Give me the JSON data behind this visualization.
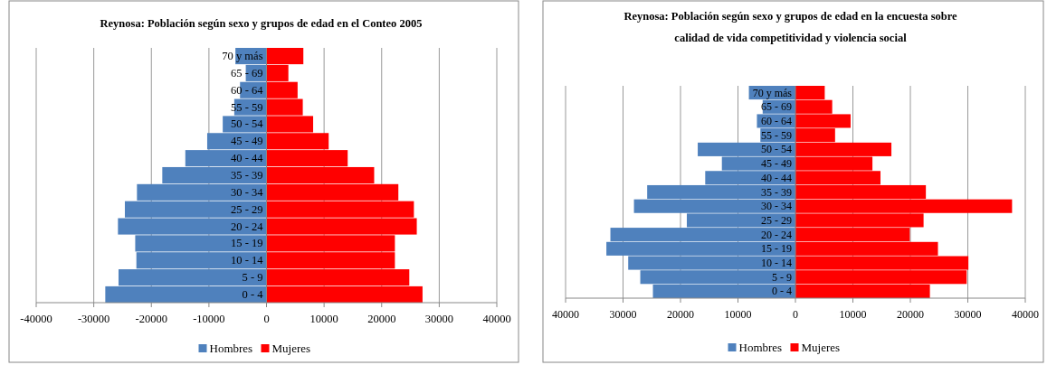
{
  "chart_data": [
    {
      "type": "bar",
      "orientation": "horizontal",
      "stacked": true,
      "title": "Reynosa: Población según sexo y grupos de edad en el Conteo 2005",
      "categories": [
        "70  y más",
        "65 - 69",
        "60 - 64",
        "55 - 59",
        "50 - 54",
        "45 - 49",
        "40 - 44",
        "35 - 39",
        "30 - 34",
        "25 - 29",
        "20 - 24",
        "15 - 19",
        "10 - 14",
        "5 -  9",
        "0 -   4"
      ],
      "series": [
        {
          "name": "Hombres",
          "color": "#4f81bd",
          "values": [
            -5400,
            -3600,
            -4600,
            -5600,
            -7600,
            -10300,
            -14100,
            -18100,
            -22500,
            -24600,
            -25800,
            -22800,
            -22600,
            -25700,
            -28000
          ]
        },
        {
          "name": "Mujeres",
          "color": "#ff0000",
          "values": [
            6400,
            3800,
            5400,
            6300,
            8100,
            10800,
            14100,
            18700,
            22900,
            25600,
            26100,
            22300,
            22300,
            24800,
            27100
          ]
        }
      ],
      "xlim": [
        -40000,
        40000
      ],
      "xticks": [
        -40000,
        -30000,
        -20000,
        -10000,
        0,
        10000,
        20000,
        30000,
        40000
      ],
      "grid": "x",
      "legend": "bottom"
    },
    {
      "type": "bar",
      "orientation": "horizontal",
      "stacked": true,
      "title": "Reynosa: Población según sexo y grupos de edad en la encuesta sobre calidad de vida competitividad y violencia social",
      "categories": [
        "70  y más",
        "65 - 69",
        "60 - 64",
        "55 - 59",
        "50 - 54",
        "45 - 49",
        "40 - 44",
        "35 - 39",
        "30 - 34",
        "25 - 29",
        "20 - 24",
        "15 - 19",
        "10 - 14",
        "5 -  9",
        "0 -   4"
      ],
      "series": [
        {
          "name": "Hombres",
          "color": "#4f81bd",
          "values": [
            -8100,
            -5700,
            -6700,
            -6100,
            -17000,
            -12800,
            -15700,
            -25800,
            -28100,
            -18900,
            -32200,
            -32900,
            -29100,
            -27000,
            -24800
          ]
        },
        {
          "name": "Mujeres",
          "color": "#ff0000",
          "values": [
            5100,
            6400,
            9600,
            6900,
            16700,
            13400,
            14800,
            22700,
            37700,
            22300,
            19900,
            24800,
            30100,
            29800,
            23400
          ]
        }
      ],
      "xlim": [
        -40000,
        40000
      ],
      "xticks": [
        {
          "value": -40000,
          "label": "40000"
        },
        {
          "value": -30000,
          "label": "30000"
        },
        {
          "value": -20000,
          "label": "20000"
        },
        {
          "value": -10000,
          "label": "10000"
        },
        0,
        10000,
        20000,
        30000,
        40000
      ],
      "grid": "x",
      "legend": "bottom"
    }
  ]
}
